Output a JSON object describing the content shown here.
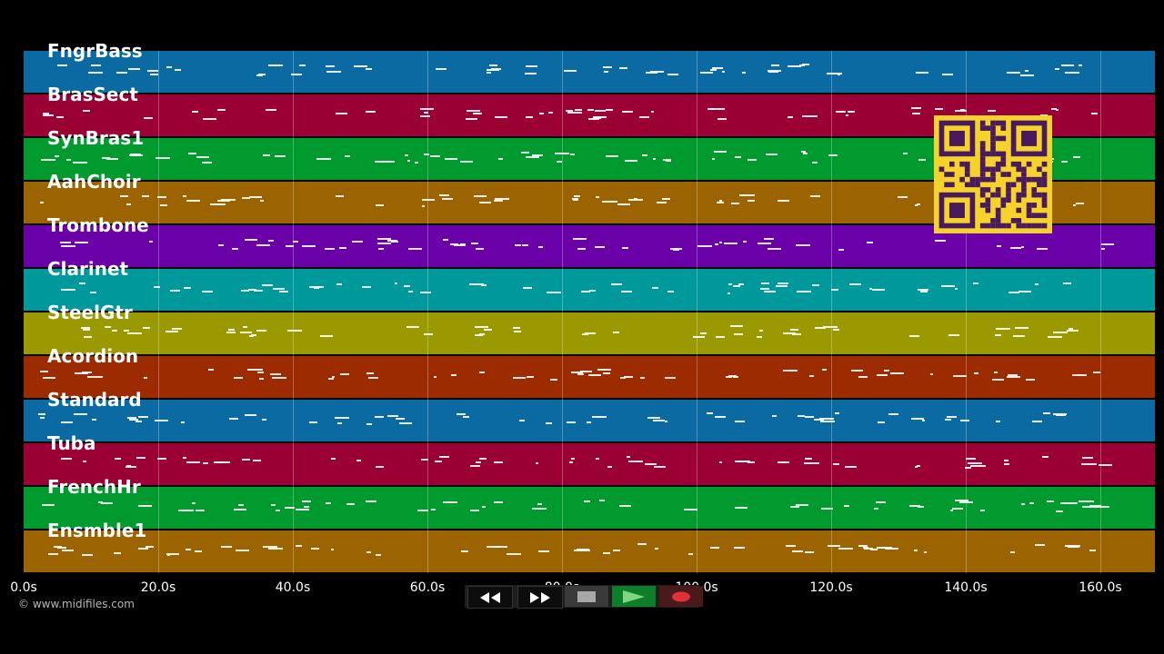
{
  "tracks": [
    {
      "name": "FngrBass",
      "color": "#0a6aa1"
    },
    {
      "name": "BrasSect",
      "color": "#9b0034"
    },
    {
      "name": "SynBras1",
      "color": "#009a2e"
    },
    {
      "name": "AahChoir",
      "color": "#9c6400"
    },
    {
      "name": "Trombone",
      "color": "#6a00a8"
    },
    {
      "name": "Clarinet",
      "color": "#00999b"
    },
    {
      "name": "SteelGtr",
      "color": "#9a9a00"
    },
    {
      "name": "Acordion",
      "color": "#9c2b00"
    },
    {
      "name": "Standard",
      "color": "#0a6aa1"
    },
    {
      "name": "Tuba",
      "color": "#9b0034"
    },
    {
      "name": "FrenchHr",
      "color": "#009a2e"
    },
    {
      "name": "Ensmble1",
      "color": "#9c6400"
    }
  ],
  "timeline": {
    "ticks": [
      "0.0s",
      "20.0s",
      "40.0s",
      "60.0s",
      "80.0s",
      "100.0s",
      "120.0s",
      "140.0s",
      "160.0s"
    ],
    "max_seconds": 168
  },
  "copyright": "© www.midifiles.com",
  "controls": {
    "rewind_icon": "rewind-icon",
    "fast_forward_icon": "fast-forward-icon",
    "stop_icon": "stop-icon",
    "play_icon": "play-icon",
    "record_icon": "record-icon"
  },
  "colors": {
    "background": "#000000",
    "qr_bg": "#f5d32b",
    "qr_fg": "#4a1a5e"
  }
}
